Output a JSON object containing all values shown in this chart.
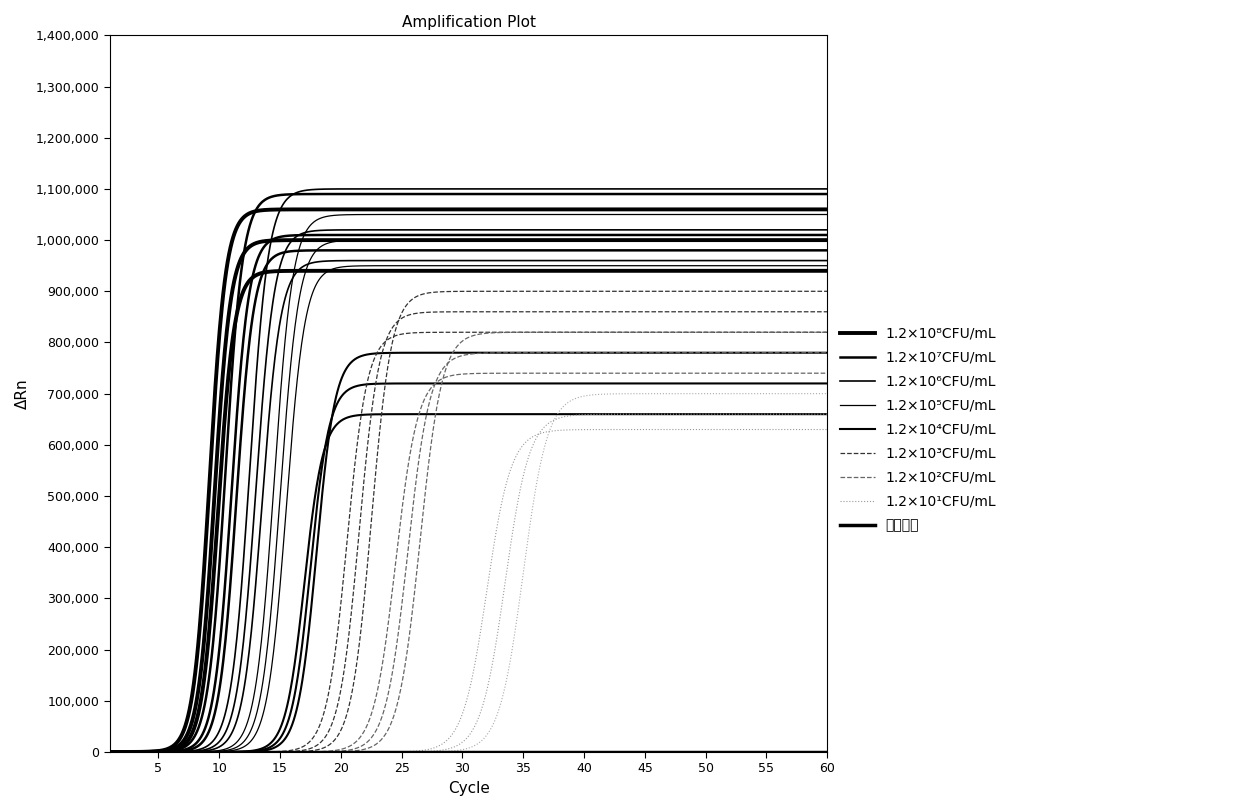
{
  "title": "Amplification Plot",
  "xlabel": "Cycle",
  "ylabel": "ΔRn",
  "xlim": [
    1,
    60
  ],
  "ylim": [
    0,
    1400000
  ],
  "yticks": [
    0,
    100000,
    200000,
    300000,
    400000,
    500000,
    600000,
    700000,
    800000,
    900000,
    1000000,
    1100000,
    1200000,
    1300000,
    1400000
  ],
  "ytick_labels": [
    "0",
    "100,000",
    "200,000",
    "300,000",
    "400,000",
    "500,000",
    "600,000",
    "700,000",
    "800,000",
    "900,000",
    "1,000,000",
    "1,100,000",
    "1,200,000",
    "1,300,000",
    "1,400,000"
  ],
  "xticks": [
    5,
    10,
    15,
    20,
    25,
    30,
    35,
    40,
    45,
    50,
    55,
    60
  ],
  "curves": [
    {
      "mid": 9.2,
      "plat": 1060000,
      "lw": 2.8,
      "ls": "solid",
      "color": "#000000",
      "k": 1.5
    },
    {
      "mid": 9.6,
      "plat": 1000000,
      "lw": 2.8,
      "ls": "solid",
      "color": "#000000",
      "k": 1.5
    },
    {
      "mid": 9.9,
      "plat": 940000,
      "lw": 2.8,
      "ls": "solid",
      "color": "#000000",
      "k": 1.5
    },
    {
      "mid": 10.5,
      "plat": 1090000,
      "lw": 1.8,
      "ls": "solid",
      "color": "#000000",
      "k": 1.4
    },
    {
      "mid": 11.0,
      "plat": 1010000,
      "lw": 1.8,
      "ls": "solid",
      "color": "#000000",
      "k": 1.4
    },
    {
      "mid": 11.4,
      "plat": 980000,
      "lw": 1.8,
      "ls": "solid",
      "color": "#000000",
      "k": 1.4
    },
    {
      "mid": 12.5,
      "plat": 1100000,
      "lw": 1.2,
      "ls": "solid",
      "color": "#000000",
      "k": 1.3
    },
    {
      "mid": 13.0,
      "plat": 1020000,
      "lw": 1.2,
      "ls": "solid",
      "color": "#000000",
      "k": 1.3
    },
    {
      "mid": 13.5,
      "plat": 960000,
      "lw": 1.2,
      "ls": "solid",
      "color": "#000000",
      "k": 1.3
    },
    {
      "mid": 14.5,
      "plat": 1050000,
      "lw": 0.9,
      "ls": "solid",
      "color": "#000000",
      "k": 1.3
    },
    {
      "mid": 15.0,
      "plat": 1000000,
      "lw": 0.9,
      "ls": "solid",
      "color": "#000000",
      "k": 1.3
    },
    {
      "mid": 15.5,
      "plat": 950000,
      "lw": 0.9,
      "ls": "solid",
      "color": "#000000",
      "k": 1.3
    },
    {
      "mid": 17.0,
      "plat": 660000,
      "lw": 1.5,
      "ls": "solid",
      "color": "#000000",
      "k": 1.3
    },
    {
      "mid": 17.5,
      "plat": 720000,
      "lw": 1.5,
      "ls": "solid",
      "color": "#000000",
      "k": 1.3
    },
    {
      "mid": 18.0,
      "plat": 780000,
      "lw": 1.5,
      "ls": "solid",
      "color": "#000000",
      "k": 1.3
    },
    {
      "mid": 20.5,
      "plat": 820000,
      "lw": 0.9,
      "ls": "dashed",
      "color": "#333333",
      "k": 1.2
    },
    {
      "mid": 21.5,
      "plat": 860000,
      "lw": 0.9,
      "ls": "dashed",
      "color": "#333333",
      "k": 1.2
    },
    {
      "mid": 22.5,
      "plat": 900000,
      "lw": 0.9,
      "ls": "dashed",
      "color": "#333333",
      "k": 1.2
    },
    {
      "mid": 24.5,
      "plat": 740000,
      "lw": 0.9,
      "ls": "dashed",
      "color": "#666666",
      "k": 1.1
    },
    {
      "mid": 25.5,
      "plat": 780000,
      "lw": 0.9,
      "ls": "dashed",
      "color": "#666666",
      "k": 1.1
    },
    {
      "mid": 26.5,
      "plat": 820000,
      "lw": 0.9,
      "ls": "dashed",
      "color": "#666666",
      "k": 1.1
    },
    {
      "mid": 32.0,
      "plat": 630000,
      "lw": 0.8,
      "ls": "dotted",
      "color": "#999999",
      "k": 1.0
    },
    {
      "mid": 33.5,
      "plat": 660000,
      "lw": 0.8,
      "ls": "dotted",
      "color": "#999999",
      "k": 1.0
    },
    {
      "mid": 35.0,
      "plat": 700000,
      "lw": 0.8,
      "ls": "dotted",
      "color": "#aaaaaa",
      "k": 1.0
    },
    {
      "mid": 999,
      "plat": 0,
      "lw": 2.5,
      "ls": "solid",
      "color": "#000000",
      "k": 1.0
    }
  ],
  "legend_series": [
    {
      "label": "1.2×10⁸CFU/mL",
      "lw": 2.8,
      "ls": "solid",
      "color": "#000000"
    },
    {
      "label": "1.2×10⁷CFU/mL",
      "lw": 1.8,
      "ls": "solid",
      "color": "#000000"
    },
    {
      "label": "1.2×10⁶CFU/mL",
      "lw": 1.2,
      "ls": "solid",
      "color": "#000000"
    },
    {
      "label": "1.2×10⁵CFU/mL",
      "lw": 0.9,
      "ls": "solid",
      "color": "#000000"
    },
    {
      "label": "1.2×10⁴CFU/mL",
      "lw": 1.5,
      "ls": "solid",
      "color": "#000000"
    },
    {
      "label": "1.2×10³CFU/mL",
      "lw": 0.9,
      "ls": "dashed",
      "color": "#333333"
    },
    {
      "label": "1.2×10²CFU/mL",
      "lw": 0.9,
      "ls": "dashed",
      "color": "#666666"
    },
    {
      "label": "1.2×10¹CFU/mL",
      "lw": 0.8,
      "ls": "dotted",
      "color": "#999999"
    },
    {
      "label": "阴性对照",
      "lw": 2.5,
      "ls": "solid",
      "color": "#000000"
    }
  ],
  "background_color": "#ffffff",
  "title_fontsize": 11,
  "tick_fontsize": 9,
  "legend_fontsize": 10
}
